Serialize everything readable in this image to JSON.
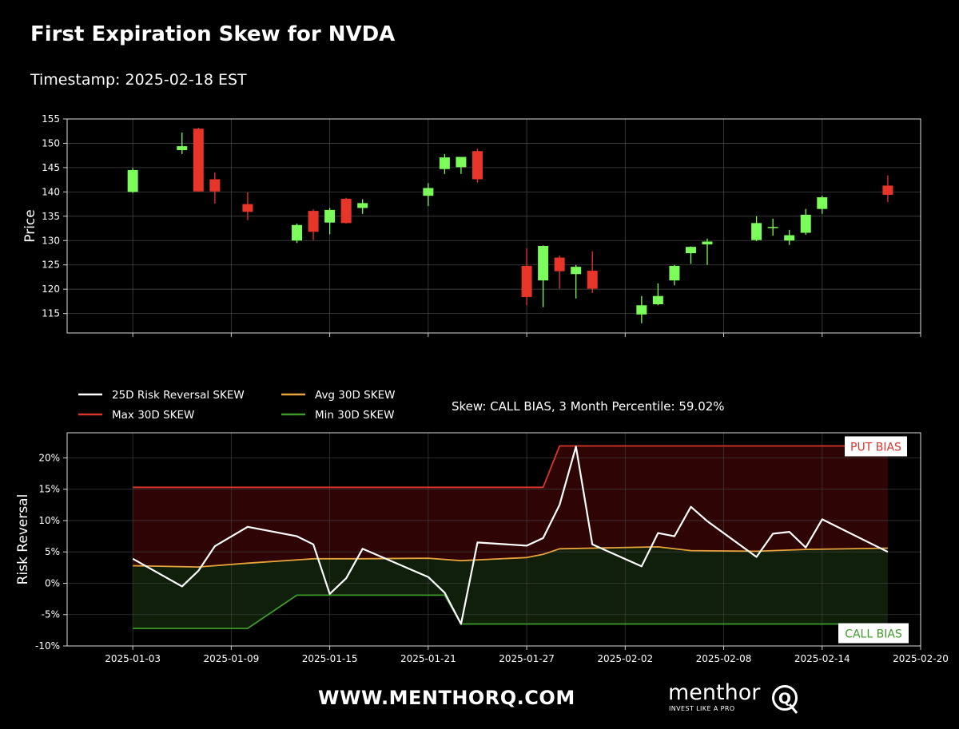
{
  "title": "First Expiration Skew for NVDA",
  "subtitle": "Timestamp: 2025-02-18 EST",
  "footer": {
    "url": "WWW.MENTHORQ.COM",
    "logo_word": "menthor",
    "logo_letter": "Q",
    "logo_tagline": "INVEST LIKE A PRO"
  },
  "colors": {
    "background": "#000000",
    "up_candle": "#7CFC5A",
    "down_candle": "#E8352A",
    "risk_reversal": "#FFFFFF",
    "max_skew": "#D9352B",
    "avg_skew": "#E8A33C",
    "min_skew": "#3E9A2A",
    "put_fill": "#2F0404",
    "call_fill": "#0F1F0A",
    "grid": "#444444"
  },
  "chart_data": [
    {
      "type": "candlestick",
      "ylabel": "Price",
      "ylim": [
        111,
        155
      ],
      "yticks": [
        115,
        120,
        125,
        130,
        135,
        140,
        145,
        150,
        155
      ],
      "xlim": [
        "2024-12-30",
        "2025-02-20"
      ],
      "grid": true,
      "candles": [
        {
          "date": "2025-01-03",
          "open": 140.0,
          "high": 144.9,
          "low": 139.8,
          "close": 144.5
        },
        {
          "date": "2025-01-06",
          "open": 148.6,
          "high": 152.2,
          "low": 147.8,
          "close": 149.4
        },
        {
          "date": "2025-01-07",
          "open": 153.0,
          "high": 153.2,
          "low": 140.1,
          "close": 140.1
        },
        {
          "date": "2025-01-08",
          "open": 142.6,
          "high": 144.0,
          "low": 137.6,
          "close": 140.1
        },
        {
          "date": "2025-01-10",
          "open": 137.5,
          "high": 139.9,
          "low": 134.2,
          "close": 135.9
        },
        {
          "date": "2025-01-13",
          "open": 130.0,
          "high": 133.5,
          "low": 129.5,
          "close": 133.2
        },
        {
          "date": "2025-01-14",
          "open": 136.1,
          "high": 136.4,
          "low": 130.1,
          "close": 131.8
        },
        {
          "date": "2025-01-15",
          "open": 133.7,
          "high": 136.7,
          "low": 131.3,
          "close": 136.3
        },
        {
          "date": "2025-01-16",
          "open": 138.6,
          "high": 138.8,
          "low": 133.5,
          "close": 133.6
        },
        {
          "date": "2025-01-17",
          "open": 136.7,
          "high": 138.5,
          "low": 135.5,
          "close": 137.7
        },
        {
          "date": "2025-01-21",
          "open": 139.2,
          "high": 141.8,
          "low": 137.1,
          "close": 140.8
        },
        {
          "date": "2025-01-22",
          "open": 144.7,
          "high": 147.8,
          "low": 143.7,
          "close": 147.1
        },
        {
          "date": "2025-01-23",
          "open": 145.1,
          "high": 147.2,
          "low": 143.7,
          "close": 147.2
        },
        {
          "date": "2025-01-24",
          "open": 148.4,
          "high": 148.9,
          "low": 141.9,
          "close": 142.6
        },
        {
          "date": "2025-01-27",
          "open": 124.8,
          "high": 128.4,
          "low": 116.7,
          "close": 118.4
        },
        {
          "date": "2025-01-28",
          "open": 121.8,
          "high": 129.0,
          "low": 116.3,
          "close": 128.9
        },
        {
          "date": "2025-01-29",
          "open": 126.5,
          "high": 126.9,
          "low": 120.1,
          "close": 123.7
        },
        {
          "date": "2025-01-30",
          "open": 123.1,
          "high": 125.0,
          "low": 118.1,
          "close": 124.6
        },
        {
          "date": "2025-01-31",
          "open": 123.8,
          "high": 127.8,
          "low": 119.2,
          "close": 120.1
        },
        {
          "date": "2025-02-03",
          "open": 114.8,
          "high": 118.6,
          "low": 113.0,
          "close": 116.7
        },
        {
          "date": "2025-02-04",
          "open": 116.9,
          "high": 121.2,
          "low": 116.7,
          "close": 118.6
        },
        {
          "date": "2025-02-05",
          "open": 121.8,
          "high": 125.0,
          "low": 120.8,
          "close": 124.8
        },
        {
          "date": "2025-02-06",
          "open": 127.4,
          "high": 128.8,
          "low": 125.2,
          "close": 128.7
        },
        {
          "date": "2025-02-07",
          "open": 129.2,
          "high": 130.4,
          "low": 125.0,
          "close": 129.8
        },
        {
          "date": "2025-02-10",
          "open": 130.1,
          "high": 135.0,
          "low": 129.9,
          "close": 133.6
        },
        {
          "date": "2025-02-11",
          "open": 132.6,
          "high": 134.5,
          "low": 131.0,
          "close": 132.8
        },
        {
          "date": "2025-02-12",
          "open": 130.0,
          "high": 132.2,
          "low": 129.1,
          "close": 131.1
        },
        {
          "date": "2025-02-13",
          "open": 131.6,
          "high": 136.5,
          "low": 131.2,
          "close": 135.3
        },
        {
          "date": "2025-02-14",
          "open": 136.5,
          "high": 139.2,
          "low": 135.5,
          "close": 138.9
        },
        {
          "date": "2025-02-18",
          "open": 141.3,
          "high": 143.4,
          "low": 137.9,
          "close": 139.4
        }
      ]
    },
    {
      "type": "line",
      "ylabel": "Risk Reversal",
      "ylim": [
        -10,
        24
      ],
      "yticks": [
        -10,
        -5,
        0,
        5,
        10,
        15,
        20
      ],
      "ytick_labels": [
        "-10%",
        "-5%",
        "0%",
        "5%",
        "10%",
        "15%",
        "20%"
      ],
      "xlim": [
        "2024-12-30",
        "2025-02-20"
      ],
      "xtick_labels": [
        "2025-01-03",
        "2025-01-09",
        "2025-01-15",
        "2025-01-21",
        "2025-01-27",
        "2025-02-02",
        "2025-02-08",
        "2025-02-14",
        "2025-02-20"
      ],
      "grid": true,
      "legend_placement": "top-left",
      "annotation": "Skew: CALL BIAS, 3 Month Percentile: 59.02%",
      "labels": {
        "put": "PUT BIAS",
        "call": "CALL BIAS"
      },
      "series": [
        {
          "name": "25D Risk Reversal SKEW",
          "color": "#FFFFFF",
          "x": [
            "2025-01-03",
            "2025-01-06",
            "2025-01-07",
            "2025-01-08",
            "2025-01-10",
            "2025-01-13",
            "2025-01-14",
            "2025-01-15",
            "2025-01-16",
            "2025-01-17",
            "2025-01-21",
            "2025-01-22",
            "2025-01-23",
            "2025-01-24",
            "2025-01-27",
            "2025-01-28",
            "2025-01-29",
            "2025-01-30",
            "2025-01-31",
            "2025-02-03",
            "2025-02-04",
            "2025-02-05",
            "2025-02-06",
            "2025-02-07",
            "2025-02-10",
            "2025-02-11",
            "2025-02-12",
            "2025-02-13",
            "2025-02-14",
            "2025-02-18"
          ],
          "values": [
            3.9,
            -0.5,
            2.0,
            5.9,
            9.0,
            7.5,
            6.2,
            -1.7,
            0.8,
            5.5,
            1.0,
            -1.5,
            -6.5,
            6.5,
            6.0,
            7.2,
            12.5,
            21.8,
            6.2,
            2.7,
            8.0,
            7.5,
            12.2,
            9.9,
            4.2,
            7.9,
            8.2,
            5.7,
            10.2,
            5.0
          ]
        },
        {
          "name": "Max 30D SKEW",
          "color": "#D9352B",
          "x": [
            "2025-01-03",
            "2025-01-28",
            "2025-01-29",
            "2025-02-18"
          ],
          "values": [
            15.3,
            15.3,
            21.9,
            21.9
          ]
        },
        {
          "name": "Avg 30D SKEW",
          "color": "#E8A33C",
          "x": [
            "2025-01-03",
            "2025-01-07",
            "2025-01-10",
            "2025-01-14",
            "2025-01-17",
            "2025-01-21",
            "2025-01-23",
            "2025-01-27",
            "2025-01-28",
            "2025-01-29",
            "2025-01-31",
            "2025-02-04",
            "2025-02-06",
            "2025-02-10",
            "2025-02-13",
            "2025-02-18"
          ],
          "values": [
            2.8,
            2.6,
            3.2,
            3.9,
            3.9,
            4.0,
            3.6,
            4.1,
            4.6,
            5.5,
            5.6,
            5.8,
            5.2,
            5.1,
            5.4,
            5.6
          ]
        },
        {
          "name": "Min 30D SKEW",
          "color": "#3E9A2A",
          "x": [
            "2025-01-03",
            "2025-01-10",
            "2025-01-13",
            "2025-01-22",
            "2025-01-23",
            "2025-02-18"
          ],
          "values": [
            -7.2,
            -7.2,
            -1.9,
            -1.9,
            -6.5,
            -6.5
          ]
        }
      ]
    }
  ]
}
